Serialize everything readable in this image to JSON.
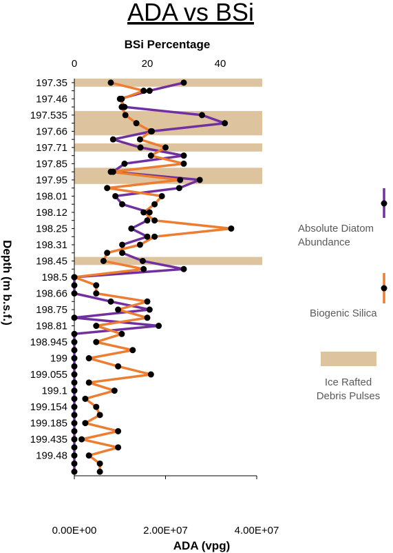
{
  "chart_data": {
    "type": "line",
    "title": "ADA vs BSi",
    "top_axis": {
      "label": "BSi Percentage",
      "range": [
        0,
        50
      ],
      "ticks": [
        0,
        20,
        40
      ]
    },
    "bottom_axis": {
      "label": "ADA (vpg)",
      "range": [
        0,
        40000000
      ],
      "ticks": [
        0,
        20000000,
        40000000
      ],
      "tick_labels": [
        "0.00E+00",
        "2.00E+07",
        "4.00E+07"
      ]
    },
    "y_axis": {
      "label": "Depth (m b.s.f.)",
      "ticks": [
        "197.35",
        "197.46",
        "197.535",
        "197.66",
        "197.71",
        "197.85",
        "197.95",
        "198.01",
        "198.12",
        "198.25",
        "198.31",
        "198.45",
        "198.5",
        "198.66",
        "198.75",
        "198.81",
        "198.945",
        "199",
        "199.055",
        "199.1",
        "199.154",
        "199.185",
        "199.435",
        "199.48"
      ],
      "points": 49
    },
    "series": [
      {
        "name": "Absolute Diatom Abundance",
        "color": "#7030A0",
        "axis": "bottom",
        "values": [
          24000000,
          16500000,
          10000000,
          11000000,
          28000000,
          33000000,
          17000000,
          8500000,
          14500000,
          24000000,
          11000000,
          8500000,
          27500000,
          23000000,
          9000000,
          10500000,
          16500000,
          16000000,
          12500000,
          16000000,
          10500000,
          10500000,
          15000000,
          24000000,
          0,
          0,
          0,
          8000000,
          16500000,
          0,
          18500000,
          0,
          0,
          0,
          0,
          0,
          0,
          0,
          0,
          0,
          0,
          0,
          0,
          0,
          0,
          0,
          0,
          0,
          0
        ]
      },
      {
        "name": "Biogenic Silica",
        "color": "#ED7D31",
        "axis": "top",
        "values": [
          10,
          19,
          13,
          13,
          14,
          17,
          21,
          18,
          25,
          21,
          30,
          10,
          29,
          9,
          24,
          22,
          19,
          22,
          43,
          22,
          18,
          9,
          8,
          19,
          0,
          6,
          6,
          20,
          12,
          20,
          6,
          13,
          6,
          16,
          4,
          12,
          21,
          4,
          11,
          3,
          6,
          7,
          3,
          12,
          2,
          12,
          4,
          7,
          7
        ]
      }
    ],
    "legend": {
      "position": "right",
      "items": [
        {
          "label": "Absolute Diatom Abundance",
          "marker": "line-dot",
          "color": "#7030A0"
        },
        {
          "label": "Biogenic Silica",
          "marker": "line-dot",
          "color": "#ED7D31"
        },
        {
          "label": "Ice Rafted Debris Pulses",
          "marker": "box",
          "color": "#DDC39E"
        }
      ]
    },
    "ird_pulse_rows": [
      [
        0,
        0
      ],
      [
        4,
        6
      ],
      [
        8,
        8
      ],
      [
        11,
        12
      ],
      [
        22,
        22
      ]
    ],
    "colors": {
      "ird": "#DDC39E",
      "axis": "#000000",
      "marker": "#000000"
    }
  }
}
